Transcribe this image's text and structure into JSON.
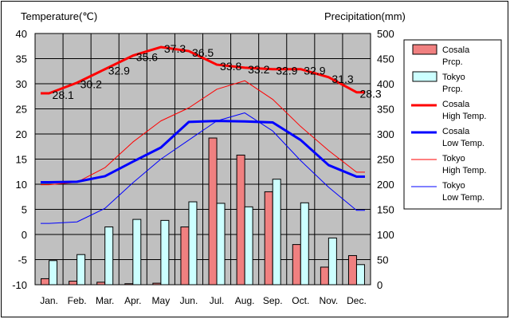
{
  "chart_data": {
    "type": "bar+line",
    "categories": [
      "Jan.",
      "Feb.",
      "Mar.",
      "Apr.",
      "May",
      "Jun.",
      "Jul.",
      "Aug.",
      "Sep.",
      "Oct.",
      "Nov.",
      "Dec."
    ],
    "left_axis": {
      "label": "Temperature(℃)",
      "range": [
        -10,
        40
      ],
      "ticks": [
        -10,
        -5,
        0,
        5,
        10,
        15,
        20,
        25,
        30,
        35,
        40
      ]
    },
    "right_axis": {
      "label": "Precipitation(mm)",
      "range": [
        0,
        500
      ],
      "ticks": [
        0,
        50,
        100,
        150,
        200,
        250,
        300,
        350,
        400,
        450,
        500
      ]
    },
    "grid": true,
    "legend_position": "right",
    "bar_series": [
      {
        "legend": [
          "Cosala",
          "Prcp."
        ],
        "color": "#f08080",
        "values": [
          12,
          7,
          5,
          2,
          3,
          115,
          292,
          258,
          185,
          80,
          35,
          58
        ]
      },
      {
        "legend": [
          "Tokyo",
          "Prcp."
        ],
        "color": "#ccffff",
        "values": [
          48,
          60,
          115,
          130,
          128,
          165,
          162,
          155,
          210,
          163,
          93,
          40
        ]
      }
    ],
    "line_series": [
      {
        "legend": [
          "Cosala",
          "High Temp."
        ],
        "color": "#ff0000",
        "width": 3,
        "values": [
          28.1,
          30.2,
          32.9,
          35.6,
          37.3,
          36.5,
          33.8,
          33.2,
          32.9,
          32.9,
          31.3,
          28.3
        ],
        "labels": [
          "28.1",
          "30.2",
          "32.9",
          "35.6",
          "37.3",
          "36.5",
          "33.8",
          "33.2",
          "32.9",
          "32.9",
          "31.3",
          "28.3"
        ]
      },
      {
        "legend": [
          "Cosala",
          "Low Temp."
        ],
        "color": "#0000ff",
        "width": 3,
        "values": [
          10.4,
          10.5,
          11.6,
          14.5,
          17.3,
          22.4,
          22.6,
          22.5,
          22.3,
          18.8,
          13.8,
          11.5
        ]
      },
      {
        "legend": [
          "Tokyo",
          "High Temp."
        ],
        "color": "#ff0000",
        "width": 1,
        "values": [
          9.9,
          10.4,
          13.3,
          18.4,
          22.6,
          25.2,
          28.9,
          30.6,
          26.9,
          21.5,
          16.7,
          12.4
        ]
      },
      {
        "legend": [
          "Tokyo",
          "Low Temp."
        ],
        "color": "#0000ff",
        "width": 1,
        "values": [
          2.2,
          2.5,
          5.2,
          10.3,
          15.0,
          18.8,
          22.6,
          24.2,
          20.6,
          14.7,
          9.4,
          4.8
        ]
      }
    ]
  }
}
